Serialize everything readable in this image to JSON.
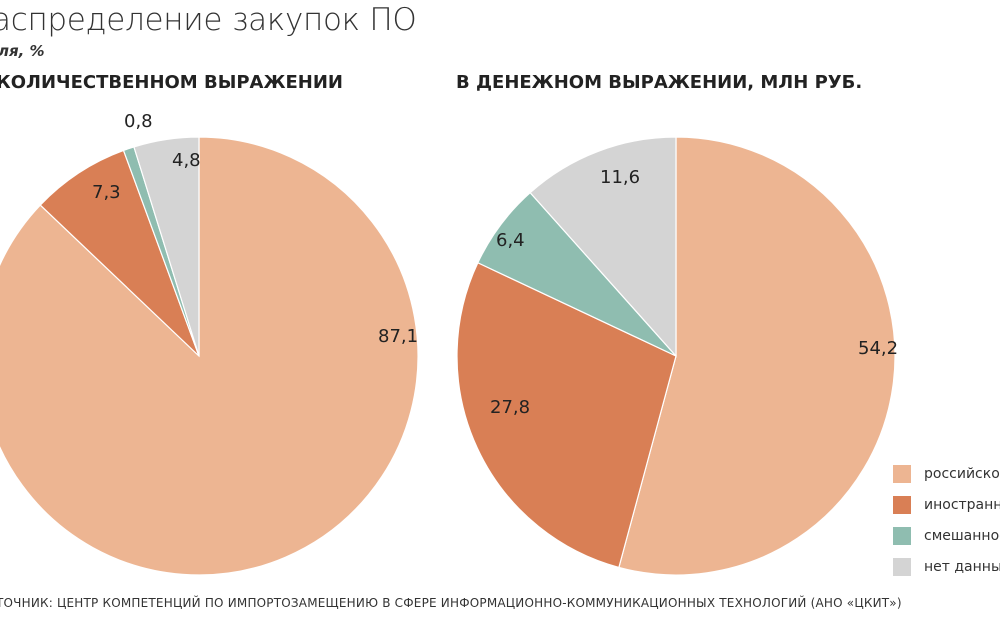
{
  "title": "аспределение закупок ПО",
  "subtitle": "ля,  %",
  "legend": [
    {
      "label": "российское",
      "color": "#EDB592"
    },
    {
      "label": "иностранное",
      "color": "#D97F55"
    },
    {
      "label": "смешанное",
      "color": "#8FBDB0"
    },
    {
      "label": "нет данных",
      "color": "#D4D4D4"
    }
  ],
  "source": "ТОЧНИК: ЦЕНТР КОМПЕТЕНЦИЙ ПО ИМПОРТОЗАМЕЩЕНИЮ В СФЕРЕ ИНФОРМАЦИОННО-КОММУНИКАЦИОННЫХ ТЕХНОЛОГИЙ (АНО «ЦКИТ»)",
  "chart_data": [
    {
      "type": "pie",
      "title": "КОЛИЧЕСТВЕННОМ ВЫРАЖЕНИИ",
      "categories": [
        "российское",
        "иностранное",
        "смешанное",
        "нет данных"
      ],
      "values": [
        87.1,
        7.3,
        0.8,
        4.8
      ],
      "labels": [
        "87,1",
        "7,3",
        "0,8",
        "4,8"
      ]
    },
    {
      "type": "pie",
      "title": "В ДЕНЕЖНОМ ВЫРАЖЕНИИ, МЛН РУБ.",
      "categories": [
        "российское",
        "иностранное",
        "смешанное",
        "нет данных"
      ],
      "values": [
        54.2,
        27.8,
        6.4,
        11.6
      ],
      "labels": [
        "54,2",
        "27,8",
        "6,4",
        "11,6"
      ]
    }
  ]
}
